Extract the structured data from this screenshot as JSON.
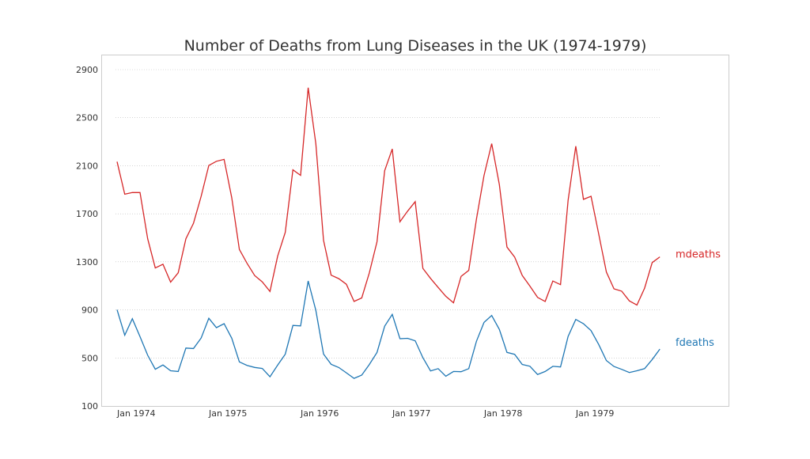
{
  "chart_data": {
    "type": "line",
    "title": "Number of Deaths from Lung Diseases in the UK (1974-1979)",
    "xlabel": "",
    "ylabel": "",
    "x_start": "1974-01",
    "x_end": "1979-12",
    "frequency": "monthly",
    "ylim": [
      100,
      3000
    ],
    "yticks": [
      100,
      500,
      900,
      1300,
      1700,
      2100,
      2500,
      2900
    ],
    "xtick_labels": [
      "Jan 1974",
      "Jan 1975",
      "Jan 1976",
      "Jan 1977",
      "Jan 1978",
      "Jan 1979"
    ],
    "grid": "horizontal dotted",
    "legend": "line-end labels",
    "series": [
      {
        "name": "mdeaths",
        "color": "#d62728",
        "values": [
          2134,
          1863,
          1877,
          1877,
          1492,
          1249,
          1280,
          1131,
          1209,
          1492,
          1621,
          1846,
          2103,
          2137,
          2153,
          1833,
          1403,
          1288,
          1186,
          1133,
          1053,
          1347,
          1545,
          2066,
          2020,
          2750,
          2283,
          1479,
          1189,
          1160,
          1113,
          970,
          999,
          1208,
          1467,
          2059,
          2240,
          1634,
          1722,
          1801,
          1246,
          1162,
          1087,
          1013,
          959,
          1179,
          1229,
          1655,
          2019,
          2284,
          1942,
          1423,
          1340,
          1187,
          1098,
          1004,
          970,
          1140,
          1110,
          1812,
          2263,
          1820,
          1846,
          1531,
          1215,
          1075,
          1056,
          975,
          940,
          1081,
          1294,
          1341
        ]
      },
      {
        "name": "fdeaths",
        "color": "#1f77b4",
        "values": [
          901,
          689,
          827,
          677,
          522,
          406,
          441,
          393,
          387,
          582,
          578,
          666,
          830,
          752,
          785,
          664,
          467,
          438,
          421,
          412,
          343,
          440,
          531,
          771,
          767,
          1141,
          896,
          532,
          447,
          420,
          376,
          330,
          357,
          445,
          546,
          764,
          862,
          660,
          663,
          643,
          502,
          392,
          411,
          348,
          387,
          385,
          411,
          638,
          796,
          853,
          737,
          546,
          530,
          446,
          431,
          362,
          387,
          430,
          425,
          679,
          821,
          785,
          727,
          612,
          478,
          429,
          405,
          379,
          393,
          411,
          487,
          574
        ]
      }
    ]
  }
}
